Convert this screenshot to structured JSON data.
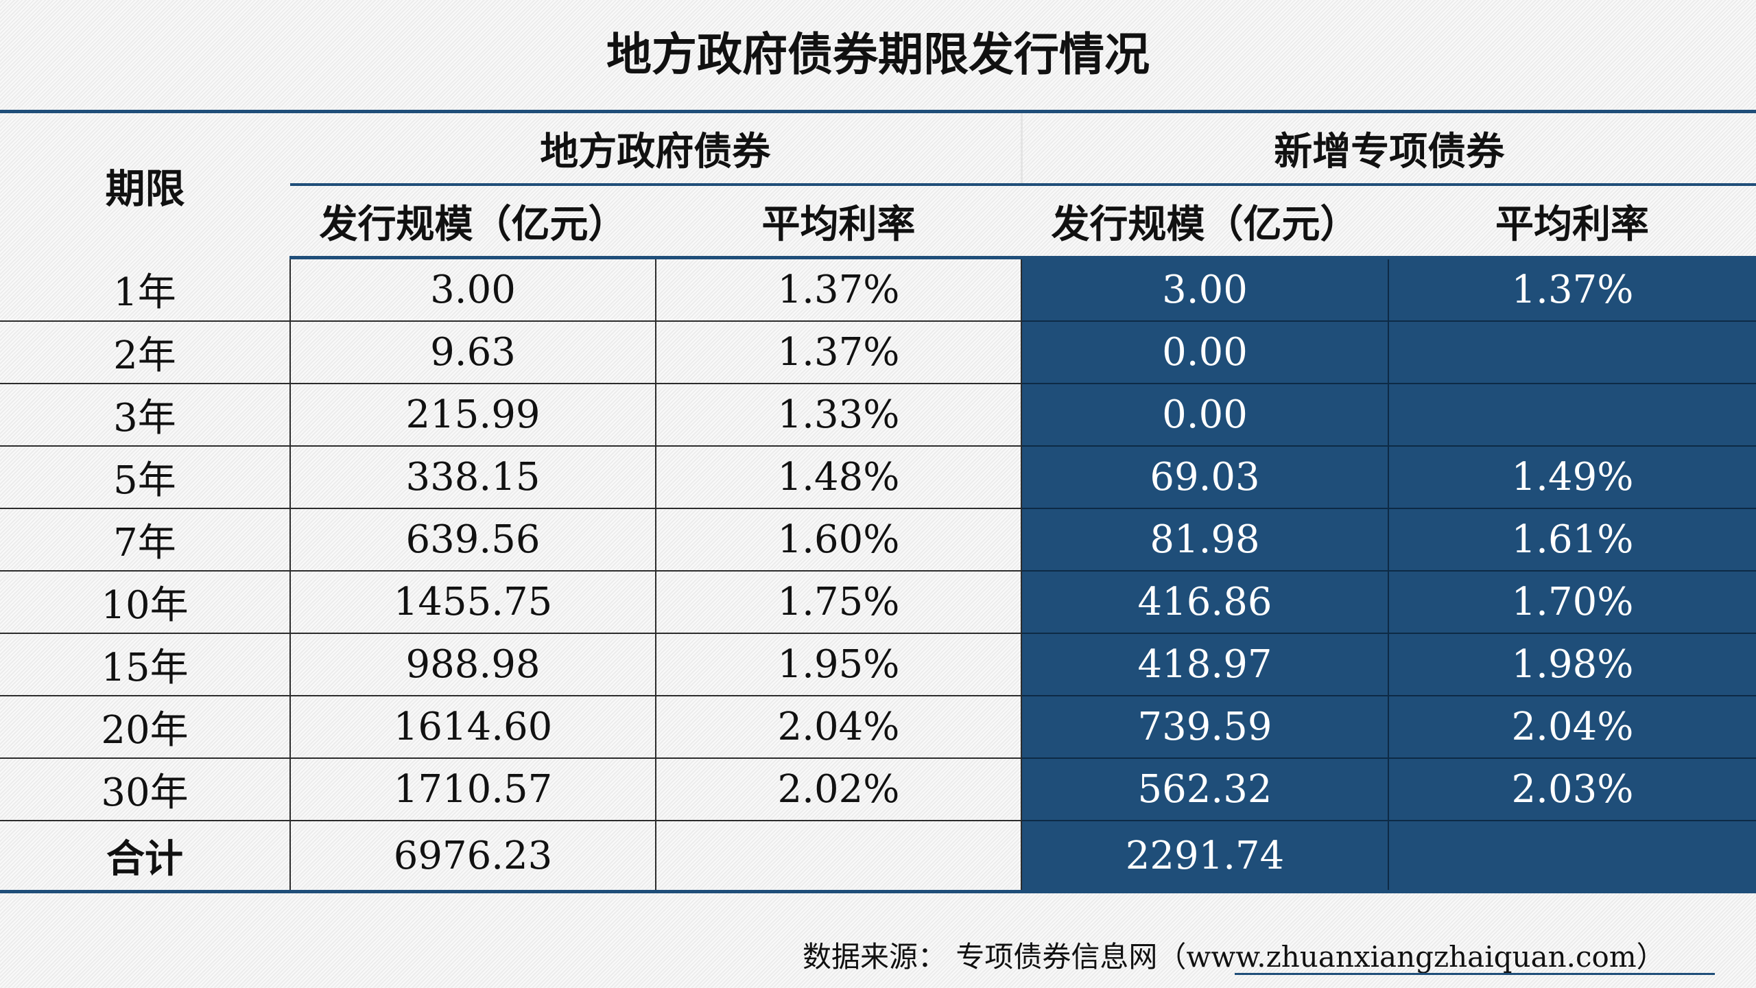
{
  "title": "地方政府债券期限发行情况",
  "header": {
    "period": "期限",
    "group_local": "地方政府债券",
    "group_special": "新增专项债券",
    "local_scale": "发行规模（亿元）",
    "local_rate": "平均利率",
    "special_scale": "发行规模（亿元）",
    "special_rate": "平均利率"
  },
  "chart_data": {
    "type": "table",
    "columns": [
      "期限",
      "地方政府债券 发行规模（亿元）",
      "地方政府债券 平均利率",
      "新增专项债券 发行规模（亿元）",
      "新增专项债券 平均利率"
    ],
    "rows": [
      {
        "period": "1年",
        "local_scale": "3.00",
        "local_rate": "1.37%",
        "special_scale": "3.00",
        "special_rate": "1.37%"
      },
      {
        "period": "2年",
        "local_scale": "9.63",
        "local_rate": "1.37%",
        "special_scale": "0.00",
        "special_rate": ""
      },
      {
        "period": "3年",
        "local_scale": "215.99",
        "local_rate": "1.33%",
        "special_scale": "0.00",
        "special_rate": ""
      },
      {
        "period": "5年",
        "local_scale": "338.15",
        "local_rate": "1.48%",
        "special_scale": "69.03",
        "special_rate": "1.49%"
      },
      {
        "period": "7年",
        "local_scale": "639.56",
        "local_rate": "1.60%",
        "special_scale": "81.98",
        "special_rate": "1.61%"
      },
      {
        "period": "10年",
        "local_scale": "1455.75",
        "local_rate": "1.75%",
        "special_scale": "416.86",
        "special_rate": "1.70%"
      },
      {
        "period": "15年",
        "local_scale": "988.98",
        "local_rate": "1.95%",
        "special_scale": "418.97",
        "special_rate": "1.98%"
      },
      {
        "period": "20年",
        "local_scale": "1614.60",
        "local_rate": "2.04%",
        "special_scale": "739.59",
        "special_rate": "2.04%"
      },
      {
        "period": "30年",
        "local_scale": "1710.57",
        "local_rate": "2.02%",
        "special_scale": "562.32",
        "special_rate": "2.03%"
      }
    ],
    "total": {
      "period": "合计",
      "local_scale": "6976.23",
      "local_rate": "",
      "special_scale": "2291.74",
      "special_rate": ""
    }
  },
  "source": {
    "label": "数据来源：",
    "site": "专项债券信息网（www.zhuanxiangzhaiquan.com）"
  },
  "colors": {
    "accent": "#1f4e79",
    "background": "#f2f2f2"
  }
}
